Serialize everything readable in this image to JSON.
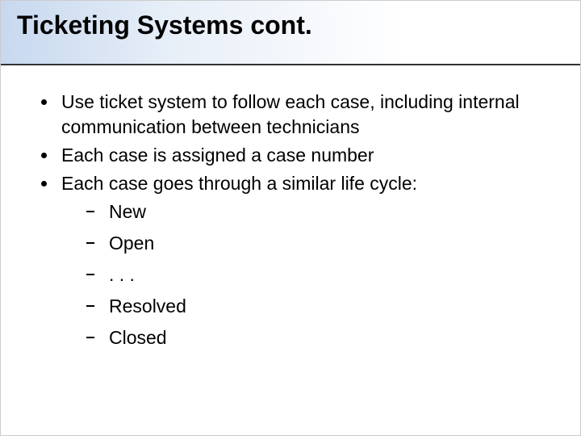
{
  "slide": {
    "title": "Ticketing Systems cont.",
    "bullets": [
      {
        "text": "Use ticket system to follow each case, including internal communication between technicians"
      },
      {
        "text": "Each case is assigned a case number"
      },
      {
        "text": "Each case goes through a similar life cycle:"
      }
    ],
    "sub_bullets": [
      {
        "text": "New"
      },
      {
        "text": "Open"
      },
      {
        "text": ". . ."
      },
      {
        "text": "Resolved"
      },
      {
        "text": "Closed"
      }
    ]
  },
  "style": {
    "title_fontsize": 32,
    "body_fontsize": 23,
    "title_color": "#000000",
    "body_color": "#000000",
    "gradient_start": "#c7d8ef",
    "gradient_end": "#ffffff",
    "underline_color": "#333333",
    "background": "#ffffff"
  }
}
